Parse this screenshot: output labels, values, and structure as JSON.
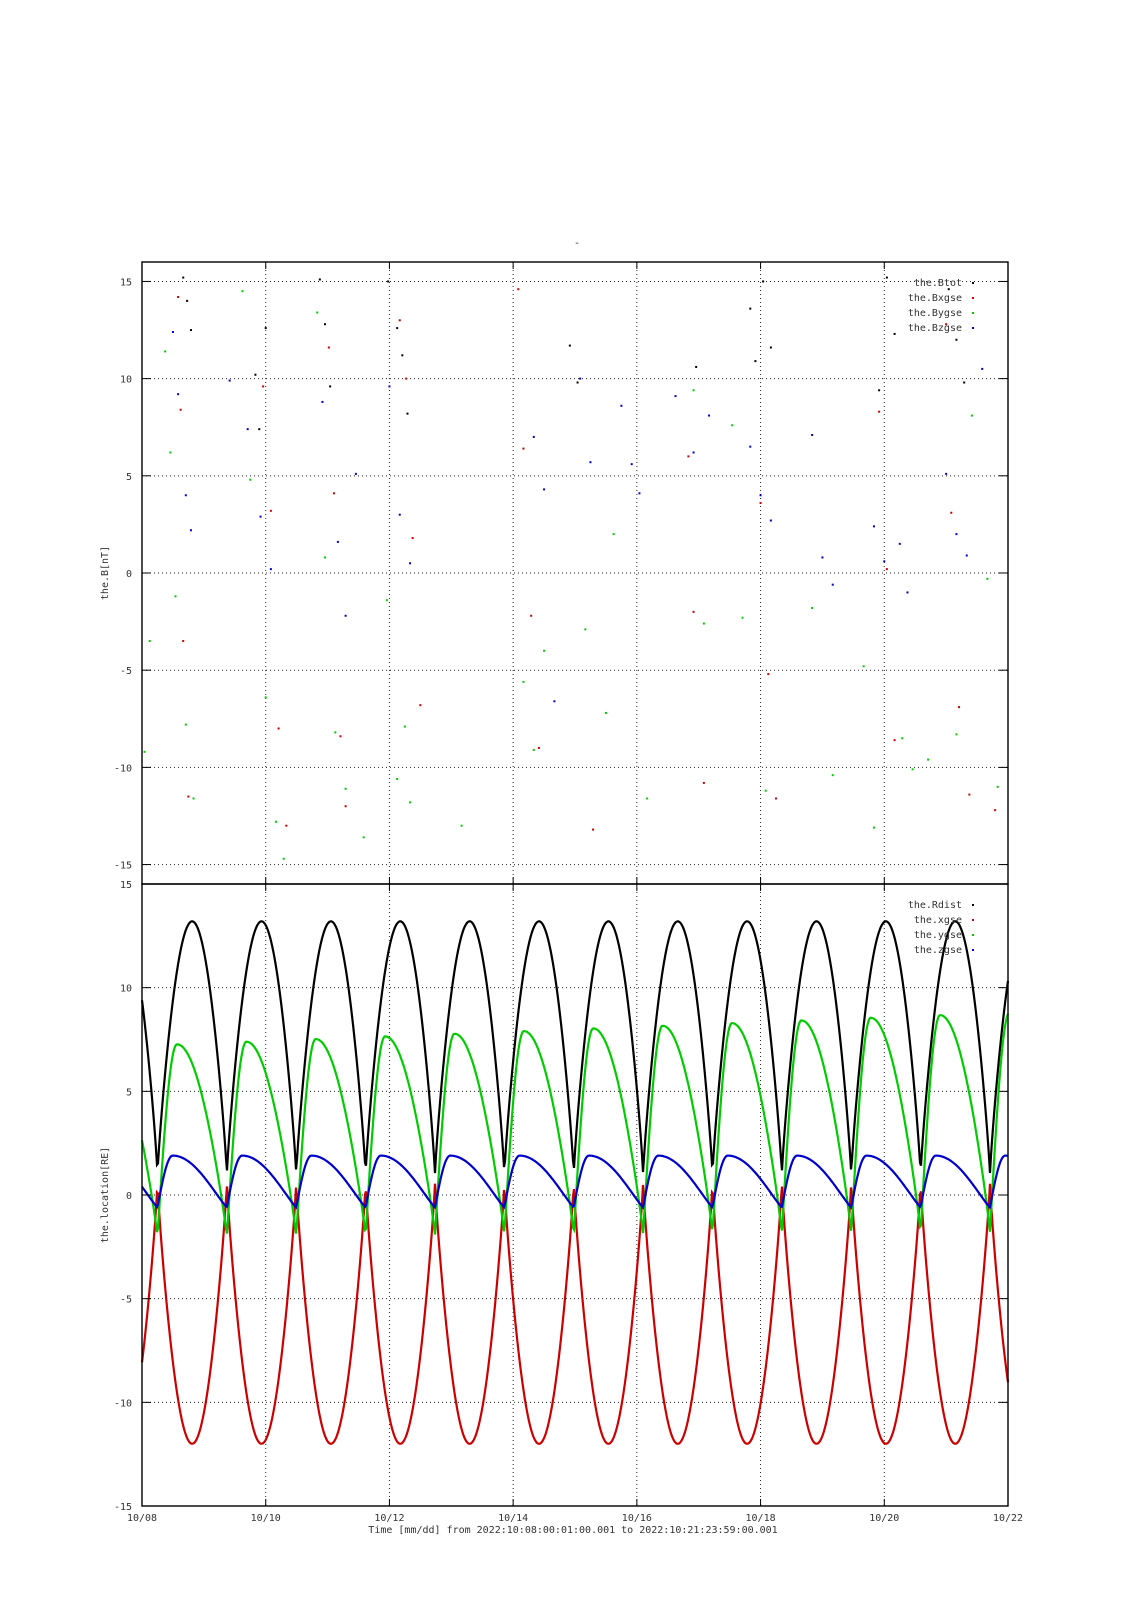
{
  "figure": {
    "top_mark": "-"
  },
  "chart_data": [
    {
      "type": "scatter",
      "ylabel": "the.B[nT]",
      "ylim": [
        -16,
        16
      ],
      "yticks": [
        -15,
        -10,
        -5,
        0,
        5,
        10,
        15
      ],
      "ytick_labels": [
        "-15",
        "-10",
        "-5",
        "0",
        "5",
        "10",
        "15"
      ],
      "grid": true,
      "legend_position": "top-right",
      "series": [
        {
          "name": "the.Btot",
          "color": "#000000",
          "points": [
            [
              "2022-10-08T16:00",
              15.2
            ],
            [
              "2022-10-08T17:30",
              14.0
            ],
            [
              "2022-10-08T19:00",
              12.5
            ],
            [
              "2022-10-09T20:00",
              10.2
            ],
            [
              "2022-10-09T21:30",
              7.4
            ],
            [
              "2022-10-10T00:00",
              12.6
            ],
            [
              "2022-10-10T21:00",
              15.1
            ],
            [
              "2022-10-10T23:00",
              12.8
            ],
            [
              "2022-10-11T01:00",
              9.6
            ],
            [
              "2022-10-11T23:30",
              15.0
            ],
            [
              "2022-10-12T03:00",
              12.6
            ],
            [
              "2022-10-12T05:00",
              11.2
            ],
            [
              "2022-10-12T07:00",
              8.2
            ],
            [
              "2022-10-14T22:00",
              11.7
            ],
            [
              "2022-10-15T01:00",
              9.8
            ],
            [
              "2022-10-16T23:00",
              10.6
            ],
            [
              "2022-10-17T20:00",
              13.6
            ],
            [
              "2022-10-17T22:00",
              10.9
            ],
            [
              "2022-10-18T01:00",
              15.0
            ],
            [
              "2022-10-18T04:00",
              11.6
            ],
            [
              "2022-10-19T22:00",
              9.4
            ],
            [
              "2022-10-20T01:00",
              15.2
            ],
            [
              "2022-10-20T04:00",
              12.3
            ],
            [
              "2022-10-21T01:00",
              14.6
            ],
            [
              "2022-10-21T04:00",
              12.0
            ],
            [
              "2022-10-21T07:00",
              9.8
            ]
          ]
        },
        {
          "name": "the.Bxgse",
          "color": "#cc0000",
          "points": [
            [
              "2022-10-08T14:00",
              14.2
            ],
            [
              "2022-10-08T15:00",
              8.4
            ],
            [
              "2022-10-08T16:00",
              -3.5
            ],
            [
              "2022-10-08T18:00",
              -11.5
            ],
            [
              "2022-10-09T23:00",
              9.6
            ],
            [
              "2022-10-10T02:00",
              3.2
            ],
            [
              "2022-10-10T05:00",
              -8.0
            ],
            [
              "2022-10-10T08:00",
              -13.0
            ],
            [
              "2022-10-11T00:30",
              11.6
            ],
            [
              "2022-10-11T02:30",
              4.1
            ],
            [
              "2022-10-11T05:00",
              -8.4
            ],
            [
              "2022-10-11T07:00",
              -12.0
            ],
            [
              "2022-10-12T04:00",
              13.0
            ],
            [
              "2022-10-12T06:30",
              10.0
            ],
            [
              "2022-10-12T09:00",
              1.8
            ],
            [
              "2022-10-12T12:00",
              -6.8
            ],
            [
              "2022-10-14T02:00",
              14.6
            ],
            [
              "2022-10-14T04:00",
              6.4
            ],
            [
              "2022-10-14T07:00",
              -2.2
            ],
            [
              "2022-10-14T10:00",
              -9.0
            ],
            [
              "2022-10-15T07:00",
              -13.2
            ],
            [
              "2022-10-16T20:00",
              6.0
            ],
            [
              "2022-10-16T22:00",
              -2.0
            ],
            [
              "2022-10-17T02:00",
              -10.8
            ],
            [
              "2022-10-18T00:00",
              3.6
            ],
            [
              "2022-10-18T03:00",
              -5.2
            ],
            [
              "2022-10-18T06:00",
              -11.6
            ],
            [
              "2022-10-19T22:00",
              8.3
            ],
            [
              "2022-10-20T01:00",
              0.2
            ],
            [
              "2022-10-20T04:00",
              -8.6
            ],
            [
              "2022-10-21T00:00",
              12.8
            ],
            [
              "2022-10-21T02:00",
              3.1
            ],
            [
              "2022-10-21T05:00",
              -6.9
            ],
            [
              "2022-10-21T09:00",
              -11.4
            ],
            [
              "2022-10-21T19:00",
              -12.2
            ]
          ]
        },
        {
          "name": "the.Bygse",
          "color": "#00cc00",
          "points": [
            [
              "2022-10-08T01:00",
              -9.2
            ],
            [
              "2022-10-08T03:00",
              -3.5
            ],
            [
              "2022-10-08T09:00",
              11.4
            ],
            [
              "2022-10-08T11:00",
              6.2
            ],
            [
              "2022-10-08T13:00",
              -1.2
            ],
            [
              "2022-10-08T17:00",
              -7.8
            ],
            [
              "2022-10-08T20:00",
              -11.6
            ],
            [
              "2022-10-09T15:00",
              14.5
            ],
            [
              "2022-10-09T18:00",
              4.8
            ],
            [
              "2022-10-10T00:00",
              -6.4
            ],
            [
              "2022-10-10T04:00",
              -12.8
            ],
            [
              "2022-10-10T07:00",
              -14.7
            ],
            [
              "2022-10-10T20:00",
              13.4
            ],
            [
              "2022-10-10T23:00",
              0.8
            ],
            [
              "2022-10-11T03:00",
              -8.2
            ],
            [
              "2022-10-11T07:00",
              -11.1
            ],
            [
              "2022-10-11T14:00",
              -13.6
            ],
            [
              "2022-10-11T23:00",
              -1.4
            ],
            [
              "2022-10-12T03:00",
              -10.6
            ],
            [
              "2022-10-12T06:00",
              -7.9
            ],
            [
              "2022-10-12T08:00",
              -11.8
            ],
            [
              "2022-10-13T04:00",
              -13.0
            ],
            [
              "2022-10-14T04:00",
              -5.6
            ],
            [
              "2022-10-14T08:00",
              -9.1
            ],
            [
              "2022-10-14T12:00",
              -4.0
            ],
            [
              "2022-10-15T04:00",
              -2.9
            ],
            [
              "2022-10-15T12:00",
              -7.2
            ],
            [
              "2022-10-15T15:00",
              2.0
            ],
            [
              "2022-10-16T04:00",
              -11.6
            ],
            [
              "2022-10-16T22:00",
              9.4
            ],
            [
              "2022-10-17T02:00",
              -2.6
            ],
            [
              "2022-10-17T13:00",
              7.6
            ],
            [
              "2022-10-17T17:00",
              -2.3
            ],
            [
              "2022-10-18T02:00",
              -11.2
            ],
            [
              "2022-10-18T20:00",
              -1.8
            ],
            [
              "2022-10-19T04:00",
              -10.4
            ],
            [
              "2022-10-19T16:00",
              -4.8
            ],
            [
              "2022-10-19T20:00",
              -13.1
            ],
            [
              "2022-10-20T07:00",
              -8.5
            ],
            [
              "2022-10-20T11:00",
              -10.1
            ],
            [
              "2022-10-20T17:00",
              -9.6
            ],
            [
              "2022-10-21T04:00",
              -8.3
            ],
            [
              "2022-10-21T10:00",
              8.1
            ],
            [
              "2022-10-21T16:00",
              -0.3
            ],
            [
              "2022-10-21T20:00",
              -11.0
            ]
          ]
        },
        {
          "name": "the.Bzgse",
          "color": "#0000cc",
          "points": [
            [
              "2022-10-08T12:00",
              12.4
            ],
            [
              "2022-10-08T14:00",
              9.2
            ],
            [
              "2022-10-08T17:00",
              4.0
            ],
            [
              "2022-10-08T19:00",
              2.2
            ],
            [
              "2022-10-09T10:00",
              9.9
            ],
            [
              "2022-10-09T17:00",
              7.4
            ],
            [
              "2022-10-09T22:00",
              2.9
            ],
            [
              "2022-10-10T02:00",
              0.2
            ],
            [
              "2022-10-10T22:00",
              8.8
            ],
            [
              "2022-10-11T04:00",
              1.6
            ],
            [
              "2022-10-11T07:00",
              -2.2
            ],
            [
              "2022-10-11T11:00",
              5.1
            ],
            [
              "2022-10-12T00:00",
              9.6
            ],
            [
              "2022-10-12T04:00",
              3.0
            ],
            [
              "2022-10-12T08:00",
              0.5
            ],
            [
              "2022-10-14T08:00",
              7.0
            ],
            [
              "2022-10-14T12:00",
              4.3
            ],
            [
              "2022-10-14T16:00",
              -6.6
            ],
            [
              "2022-10-15T02:00",
              10.0
            ],
            [
              "2022-10-15T06:00",
              5.7
            ],
            [
              "2022-10-15T18:00",
              8.6
            ],
            [
              "2022-10-15T22:00",
              5.6
            ],
            [
              "2022-10-16T01:00",
              4.1
            ],
            [
              "2022-10-16T15:00",
              9.1
            ],
            [
              "2022-10-16T22:00",
              6.2
            ],
            [
              "2022-10-17T04:00",
              8.1
            ],
            [
              "2022-10-17T20:00",
              6.5
            ],
            [
              "2022-10-18T00:00",
              4.0
            ],
            [
              "2022-10-18T04:00",
              2.7
            ],
            [
              "2022-10-18T20:00",
              7.1
            ],
            [
              "2022-10-19T00:00",
              0.8
            ],
            [
              "2022-10-19T04:00",
              -0.6
            ],
            [
              "2022-10-19T20:00",
              2.4
            ],
            [
              "2022-10-20T00:00",
              0.6
            ],
            [
              "2022-10-20T06:00",
              1.5
            ],
            [
              "2022-10-20T09:00",
              -1.0
            ],
            [
              "2022-10-21T00:00",
              5.1
            ],
            [
              "2022-10-21T04:00",
              2.0
            ],
            [
              "2022-10-21T08:00",
              0.9
            ],
            [
              "2022-10-21T14:00",
              10.5
            ]
          ]
        }
      ]
    },
    {
      "type": "line",
      "ylabel": "the.location[RE]",
      "ylim": [
        -15,
        15
      ],
      "yticks": [
        -15,
        -10,
        -5,
        0,
        5,
        10,
        15
      ],
      "ytick_labels": [
        "-15",
        "-10",
        "-5",
        "0",
        "5",
        "10",
        "15"
      ],
      "grid": true,
      "legend_position": "top-right",
      "orbit_perigee_times": [
        "2022-10-08T06:00",
        "2022-10-09T09:00",
        "2022-10-10T12:00",
        "2022-10-11T14:00",
        "2022-10-12T17:00",
        "2022-10-13T20:00",
        "2022-10-14T23:00",
        "2022-10-16T02:00",
        "2022-10-17T05:00",
        "2022-10-18T08:00",
        "2022-10-19T11:00",
        "2022-10-20T14:00",
        "2022-10-21T17:00"
      ],
      "series": [
        {
          "name": "the.Rdist",
          "color": "#000000",
          "range": [
            1.0,
            13.2
          ]
        },
        {
          "name": "the.xgse",
          "color": "#cc0000",
          "range": [
            -12.0,
            0.6
          ]
        },
        {
          "name": "the.ygse",
          "color": "#00cc00",
          "range": [
            -2.0,
            7.2
          ],
          "range_end": [
            -1.8,
            8.8
          ]
        },
        {
          "name": "the.zgse",
          "color": "#0000cc",
          "range": [
            -0.6,
            1.9
          ]
        }
      ]
    }
  ],
  "x_axis": {
    "range": [
      "2022-10-08T00:00",
      "2022-10-22T00:00"
    ],
    "tick_labels": [
      "10/08",
      "10/10",
      "10/12",
      "10/14",
      "10/16",
      "10/18",
      "10/20",
      "10/22"
    ],
    "label": "Time [mm/dd]  from 2022:10:08:00:01:00.001  to  2022:10:21:23:59:00.001"
  }
}
